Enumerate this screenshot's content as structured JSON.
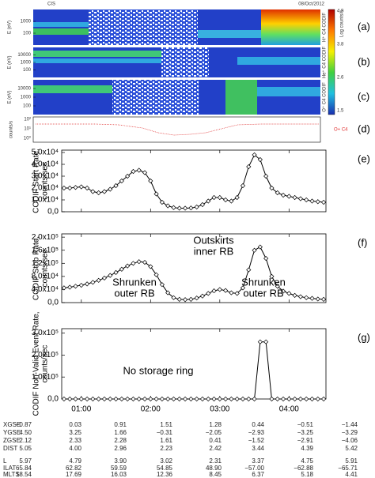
{
  "header": {
    "left": "CIS",
    "right": "08/Oct/2012"
  },
  "spectrograms": [
    {
      "label": "(a)",
      "ylabel": "E (eV)",
      "yticks": [
        "1000",
        "100"
      ],
      "side": "H⁺ C4 CODIF"
    },
    {
      "label": "(b)",
      "ylabel": "E (eV)",
      "yticks": [
        "10000",
        "1000",
        "100"
      ],
      "side": "He⁺ C4 CODIF"
    },
    {
      "label": "(c)",
      "ylabel": "E (eV)",
      "yticks": [
        "10000",
        "1000",
        "100"
      ],
      "side": "O⁺ C4 CODIF"
    }
  ],
  "colorbar": {
    "title": "Log counts/s",
    "ticks": [
      "4.9",
      "3.8",
      "2.6",
      "1.5"
    ]
  },
  "counts_panel": {
    "label": "(d)",
    "ylabel": "counts/s",
    "yticks": [
      "10²",
      "10¹",
      "10⁰"
    ],
    "legend": "O+ C4"
  },
  "chart_data": [
    {
      "type": "line",
      "label": "(e)",
      "ylabel": [
        "CODIF Start Rate,",
        "counts/sec"
      ],
      "color": "#000000",
      "x": [
        45,
        50,
        55,
        60,
        65,
        70,
        75,
        80,
        85,
        90,
        95,
        100,
        105,
        110,
        115,
        120,
        125,
        130,
        135,
        140,
        145,
        150,
        155,
        160,
        165,
        170,
        175,
        180,
        185,
        190,
        195,
        200,
        205,
        210,
        215,
        220,
        225,
        230,
        235,
        240,
        245,
        250,
        255,
        260,
        265,
        270
      ],
      "values": [
        20000,
        20000,
        20500,
        21000,
        20000,
        17000,
        16000,
        17000,
        19000,
        22000,
        26000,
        30000,
        34000,
        35000,
        33000,
        26000,
        15000,
        8000,
        5000,
        3500,
        3000,
        3000,
        3200,
        4000,
        6000,
        9000,
        12000,
        12000,
        10000,
        9000,
        12000,
        22000,
        38000,
        48000,
        44000,
        30000,
        20000,
        16000,
        14000,
        13000,
        12000,
        11000,
        10000,
        9000,
        8500,
        8000
      ],
      "xlim": [
        43,
        272
      ],
      "xticks": [
        60,
        120,
        180,
        240
      ],
      "ylim": [
        0,
        52000
      ],
      "yticks": [
        {
          "value": 0,
          "label": "0,0"
        },
        {
          "value": 10000,
          "label": "1,0x10⁴"
        },
        {
          "value": 20000,
          "label": "2,0x10⁴"
        },
        {
          "value": 30000,
          "label": "3,0x10⁴"
        },
        {
          "value": 40000,
          "label": "4,0x10⁴"
        },
        {
          "value": 50000,
          "label": "5,0x10⁴"
        }
      ]
    },
    {
      "type": "line",
      "label": "(f)",
      "ylabel": [
        "CODIF Stop Rate,",
        "counts/sec"
      ],
      "color": "#000000",
      "x": [
        45,
        50,
        55,
        60,
        65,
        70,
        75,
        80,
        85,
        90,
        95,
        100,
        105,
        110,
        115,
        120,
        125,
        130,
        135,
        140,
        145,
        150,
        155,
        160,
        165,
        170,
        175,
        180,
        185,
        190,
        195,
        200,
        205,
        210,
        215,
        220,
        225,
        230,
        235,
        240,
        245,
        250,
        255,
        260,
        265,
        270
      ],
      "values": [
        45000,
        47000,
        50000,
        53000,
        57000,
        62000,
        68000,
        75000,
        83000,
        92000,
        102000,
        112000,
        120000,
        125000,
        123000,
        110000,
        85000,
        55000,
        30000,
        15000,
        10000,
        9000,
        10000,
        14000,
        20000,
        28000,
        36000,
        40000,
        37000,
        30000,
        28000,
        45000,
        100000,
        160000,
        170000,
        135000,
        80000,
        50000,
        35000,
        28000,
        22000,
        18000,
        15000,
        13000,
        11000,
        10000
      ],
      "xlim": [
        43,
        272
      ],
      "xticks": [
        60,
        120,
        180,
        240
      ],
      "ylim": [
        0,
        210000
      ],
      "yticks": [
        {
          "value": 0,
          "label": "0,0"
        },
        {
          "value": 40000,
          "label": "4,0x10⁴"
        },
        {
          "value": 80000,
          "label": "8,0x10⁴"
        },
        {
          "value": 120000,
          "label": "1,2x10⁵"
        },
        {
          "value": 160000,
          "label": "1,6x10⁵"
        },
        {
          "value": 200000,
          "label": "2,0x10⁵"
        }
      ],
      "annotations": [
        {
          "lines": [
            "Outskirts",
            "inner RB"
          ]
        },
        {
          "lines": [
            "Shrunken",
            "outer RB"
          ]
        },
        {
          "lines": [
            "Shrunken",
            "outer RB"
          ]
        }
      ]
    },
    {
      "type": "line",
      "label": "(g)",
      "ylabel": [
        "CODIF Non-Valid Event Rate,",
        "counts/sec"
      ],
      "color": "#000000",
      "x": [
        45,
        50,
        55,
        60,
        65,
        70,
        75,
        80,
        85,
        90,
        95,
        100,
        105,
        110,
        115,
        120,
        125,
        130,
        135,
        140,
        145,
        150,
        155,
        160,
        165,
        170,
        175,
        180,
        185,
        190,
        195,
        200,
        205,
        210,
        215,
        220,
        225,
        230,
        235,
        240,
        245,
        250,
        255,
        260,
        265,
        270
      ],
      "values": [
        0,
        0,
        0,
        0,
        0,
        0,
        0,
        0,
        0,
        0,
        0,
        0,
        0,
        0,
        0,
        0,
        0,
        0,
        0,
        0,
        0,
        0,
        0,
        0,
        0,
        0,
        0,
        0,
        0,
        0,
        0,
        0,
        0,
        0,
        260000,
        260000,
        0,
        0,
        0,
        0,
        0,
        0,
        0,
        0,
        0,
        0
      ],
      "xlim": [
        43,
        272
      ],
      "xticks": [
        {
          "value": 60,
          "label": "01:00"
        },
        {
          "value": 120,
          "label": "02:00"
        },
        {
          "value": 180,
          "label": "03:00"
        },
        {
          "value": 240,
          "label": "04:00"
        }
      ],
      "ylim": [
        0,
        320000
      ],
      "yticks": [
        {
          "value": 0,
          "label": "0,0"
        },
        {
          "value": 100000,
          "label": "1,0x10⁵"
        },
        {
          "value": 200000,
          "label": "2,0x10⁵"
        },
        {
          "value": 300000,
          "label": "3,0x10⁵"
        }
      ],
      "annotations": [
        {
          "lines": [
            "No storage ring"
          ]
        }
      ]
    }
  ],
  "ephemeris": {
    "rows": [
      {
        "name": "XGSE",
        "values": [
          "−0.87",
          "0.03",
          "0.91",
          "1.51",
          "1.28",
          "0.44",
          "−0.51",
          "−1.44"
        ]
      },
      {
        "name": "YGSE",
        "values": [
          "4.50",
          "3.25",
          "1.66",
          "−0.31",
          "−2.05",
          "−2.93",
          "−3.25",
          "−3.29"
        ]
      },
      {
        "name": "ZGSE",
        "values": [
          "2.12",
          "2.33",
          "2.28",
          "1.61",
          "0.41",
          "−1.52",
          "−2.91",
          "−4.06"
        ]
      },
      {
        "name": "DIST",
        "values": [
          "5.05",
          "4.00",
          "2.96",
          "2.23",
          "2.42",
          "3.44",
          "4.39",
          "5.42"
        ]
      },
      {
        "name": "L",
        "values": [
          "5.97",
          "4.79",
          "3.90",
          "3.02",
          "2.31",
          "3.37",
          "4.75",
          "5.91"
        ]
      },
      {
        "name": "ILAT",
        "values": [
          "65.84",
          "62.82",
          "59.59",
          "54.85",
          "48.90",
          "−57.00",
          "−62.88",
          "−65.71"
        ]
      },
      {
        "name": "MLTS",
        "values": [
          "18.54",
          "17.69",
          "16.03",
          "12.36",
          "8.45",
          "6.37",
          "5.18",
          "4.41"
        ]
      }
    ]
  }
}
